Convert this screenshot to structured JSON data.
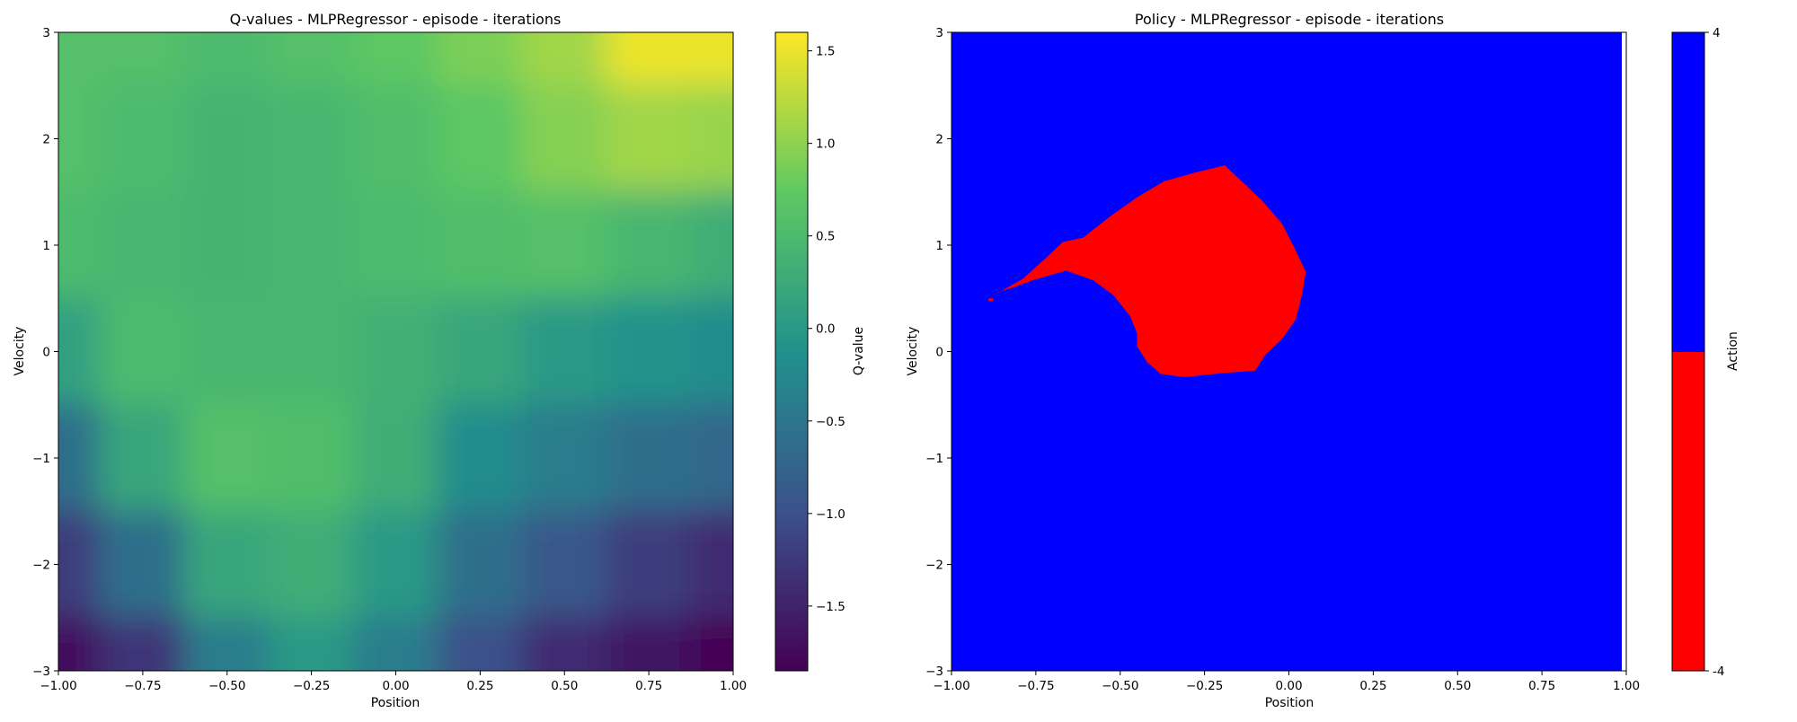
{
  "chart_data": [
    {
      "type": "heatmap",
      "title": "Q-values - MLPRegressor - episode - iterations",
      "xlabel": "Position",
      "ylabel": "Velocity",
      "xlim": [
        -1.0,
        1.0
      ],
      "ylim": [
        -3,
        3
      ],
      "x_ticks": [
        "−1.00",
        "−0.75",
        "−0.50",
        "−0.25",
        "0.00",
        "0.25",
        "0.50",
        "0.75",
        "1.00"
      ],
      "y_ticks": [
        "−3",
        "−2",
        "−1",
        "0",
        "1",
        "2",
        "3"
      ],
      "colormap": "viridis",
      "colorbar": {
        "label": "Q-value",
        "range": [
          -1.85,
          1.6
        ],
        "ticks": [
          "−1.5",
          "−1.0",
          "−0.5",
          "0.0",
          "0.5",
          "1.0",
          "1.5"
        ]
      },
      "grid": {
        "x": [
          -1.0,
          -0.75,
          -0.5,
          -0.25,
          0.0,
          0.25,
          0.5,
          0.75,
          1.0
        ],
        "y": [
          3,
          2,
          1,
          0,
          -1,
          -2,
          -3
        ],
        "values": [
          [
            0.6,
            0.6,
            0.5,
            0.6,
            0.7,
            0.9,
            1.1,
            1.5,
            1.5
          ],
          [
            0.6,
            0.5,
            0.4,
            0.45,
            0.55,
            0.7,
            0.95,
            1.1,
            1.05
          ],
          [
            0.5,
            0.45,
            0.4,
            0.45,
            0.5,
            0.55,
            0.6,
            0.45,
            0.3
          ],
          [
            0.1,
            0.5,
            0.45,
            0.45,
            0.35,
            0.2,
            0.0,
            -0.1,
            -0.2
          ],
          [
            -0.6,
            0.2,
            0.6,
            0.55,
            0.3,
            -0.2,
            -0.4,
            -0.6,
            -0.7
          ],
          [
            -1.2,
            -0.6,
            0.2,
            0.3,
            0.0,
            -0.6,
            -0.9,
            -1.2,
            -1.4
          ],
          [
            -1.7,
            -1.3,
            -0.4,
            0.0,
            -0.4,
            -1.0,
            -1.4,
            -1.6,
            -1.85
          ]
        ]
      }
    },
    {
      "type": "heatmap",
      "title": "Policy - MLPRegressor - episode - iterations",
      "xlabel": "Position",
      "ylabel": "Velocity",
      "xlim": [
        -1.0,
        1.0
      ],
      "ylim": [
        -3,
        3
      ],
      "x_ticks": [
        "−1.00",
        "−0.75",
        "−0.50",
        "−0.25",
        "0.00",
        "0.25",
        "0.50",
        "0.75",
        "1.00"
      ],
      "y_ticks": [
        "−3",
        "−2",
        "−1",
        "0",
        "1",
        "2",
        "3"
      ],
      "background_action": 4,
      "region_action": -4,
      "colors": {
        "action_4": "#0000ff",
        "action_-4": "#ff0000"
      },
      "colorbar": {
        "label": "Action",
        "ticks": [
          "-4",
          "4"
        ]
      },
      "region_boundary": [
        [
          -0.88,
          0.52
        ],
        [
          -0.79,
          0.68
        ],
        [
          -0.72,
          0.88
        ],
        [
          -0.67,
          1.03
        ],
        [
          -0.61,
          1.07
        ],
        [
          -0.53,
          1.27
        ],
        [
          -0.45,
          1.45
        ],
        [
          -0.37,
          1.6
        ],
        [
          -0.28,
          1.68
        ],
        [
          -0.19,
          1.75
        ],
        [
          -0.14,
          1.6
        ],
        [
          -0.08,
          1.42
        ],
        [
          -0.02,
          1.2
        ],
        [
          0.02,
          0.95
        ],
        [
          0.05,
          0.75
        ],
        [
          0.04,
          0.55
        ],
        [
          0.02,
          0.3
        ],
        [
          -0.02,
          0.12
        ],
        [
          -0.07,
          -0.03
        ],
        [
          -0.1,
          -0.18
        ],
        [
          -0.19,
          -0.2
        ],
        [
          -0.31,
          -0.24
        ],
        [
          -0.38,
          -0.21
        ],
        [
          -0.42,
          -0.1
        ],
        [
          -0.45,
          0.05
        ],
        [
          -0.45,
          0.17
        ],
        [
          -0.47,
          0.33
        ],
        [
          -0.52,
          0.53
        ],
        [
          -0.58,
          0.67
        ],
        [
          -0.66,
          0.76
        ],
        [
          -0.75,
          0.68
        ],
        [
          -0.82,
          0.6
        ],
        [
          -0.86,
          0.56
        ]
      ]
    }
  ]
}
